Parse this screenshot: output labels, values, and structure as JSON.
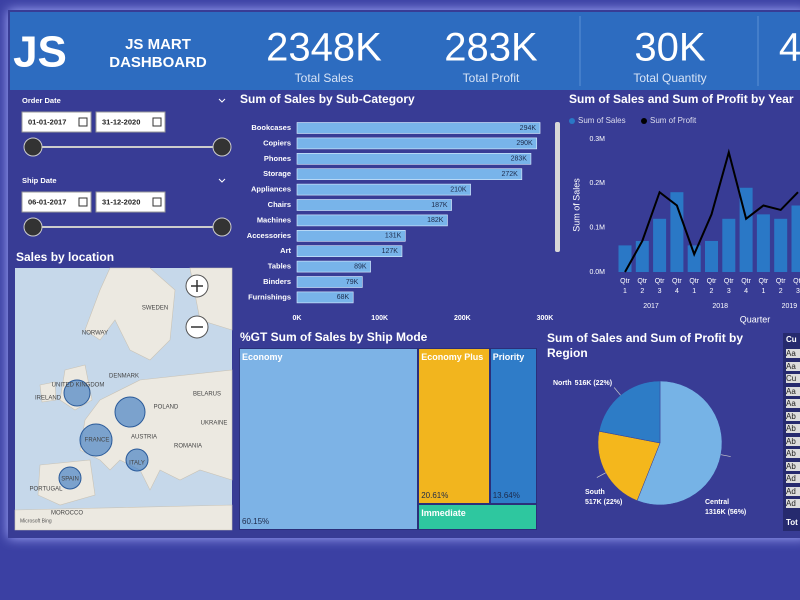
{
  "header": {
    "logo": "JS",
    "title": [
      "JS MART",
      "DASHBOARD"
    ]
  },
  "kpis": [
    {
      "value": "2348K",
      "label": "Total Sales"
    },
    {
      "value": "283K",
      "label": "Total Profit"
    },
    {
      "value": "30K",
      "label": "Total Quantity"
    },
    {
      "value": "4"
    }
  ],
  "filters": [
    {
      "label": "Order Date",
      "from": "01-01-2017",
      "to": "31-12-2020"
    },
    {
      "label": "Ship Date",
      "from": "06-01-2017",
      "to": "31-12-2020"
    }
  ],
  "map": {
    "title": "Sales by location",
    "places": [
      "SWEDEN",
      "NORWAY",
      "DENMARK",
      "UNITED KINGDOM",
      "IRELAND",
      "POLAND",
      "BELARUS",
      "FRANCE",
      "AUSTRIA",
      "UKRAINE",
      "ROMANIA",
      "ITALY",
      "SPAIN",
      "PORTUGAL",
      "MOROCCO"
    ],
    "attribution": "Microsoft Bing"
  },
  "chart_data": [
    {
      "type": "hbar",
      "title": "Sum of Sales by Sub-Category",
      "color": "#78b4ea",
      "categories": [
        "Bookcases",
        "Copiers",
        "Phones",
        "Storage",
        "Appliances",
        "Chairs",
        "Machines",
        "Accessories",
        "Art",
        "Tables",
        "Binders",
        "Furnishings"
      ],
      "values": [
        294,
        290,
        283,
        272,
        210,
        187,
        182,
        131,
        127,
        89,
        79,
        68
      ],
      "value_labels": [
        "294K",
        "290K",
        "283K",
        "272K",
        "210K",
        "187K",
        "182K",
        "131K",
        "127K",
        "89K",
        "79K",
        "68K"
      ],
      "xlim": [
        0,
        300
      ],
      "xticks": [
        {
          "value": 0,
          "label": "0K"
        },
        {
          "value": 100,
          "label": "100K"
        },
        {
          "value": 200,
          "label": "200K"
        },
        {
          "value": 300,
          "label": "300K"
        }
      ]
    },
    {
      "type": "combo",
      "title": "Sum of Sales and Sum of Profit by Year",
      "y_label": "Sum of Sales",
      "x_label": "Quarter",
      "categories": [
        "Qtr 1",
        "Qtr 2",
        "Qtr 3",
        "Qtr 4",
        "Qtr 1",
        "Qtr 2",
        "Qtr 3",
        "Qtr 4",
        "Qtr 1",
        "Qtr 2",
        "Qtr 3"
      ],
      "years": [
        "2017",
        "2018",
        "2019"
      ],
      "series": [
        {
          "name": "Sum of Sales",
          "kind": "bar",
          "color": "#2a78c6",
          "values": [
            0.06,
            0.07,
            0.12,
            0.18,
            0.06,
            0.07,
            0.12,
            0.19,
            0.13,
            0.12,
            0.15
          ]
        },
        {
          "name": "Sum of Profit",
          "kind": "line",
          "color": "#000000",
          "values": [
            0.0,
            0.07,
            0.18,
            0.15,
            0.04,
            0.13,
            0.27,
            0.12,
            0.15,
            0.14,
            0.18
          ]
        }
      ],
      "ylim": [
        0,
        0.3
      ],
      "yticks": [
        {
          "value": 0,
          "label": "0.0M"
        },
        {
          "value": 0.1,
          "label": "0.1M"
        },
        {
          "value": 0.2,
          "label": "0.2M"
        },
        {
          "value": 0.3,
          "label": "0.3M"
        }
      ]
    },
    {
      "type": "treemap",
      "title": "%GT Sum of Sales by Ship Mode",
      "categories": [
        "Economy",
        "Economy Plus",
        "Priority",
        "Immediate"
      ],
      "values": [
        60.15,
        20.61,
        13.64,
        5.6
      ],
      "value_labels": [
        "60.15%",
        "20.61%",
        "13.64%",
        null
      ],
      "colors": [
        "#7db3e6",
        "#f2b51e",
        "#2f7cc8",
        "#2ec79f"
      ]
    },
    {
      "type": "pie",
      "title": "Sum of Sales and Sum of Profit by Region",
      "categories": [
        "Central",
        "South",
        "North"
      ],
      "values": [
        1316,
        517,
        516
      ],
      "value_labels": [
        "1316K (56%)",
        "517K (22%)",
        "516K (22%)"
      ],
      "colors": [
        "#76b3e6",
        "#f4b71c",
        "#2d7cc6"
      ]
    }
  ],
  "table": {
    "header": "Cu",
    "rows": [
      "Aa",
      "Aa",
      "Cu",
      "Aa",
      "Aa",
      "Ab",
      "Ab",
      "Ab",
      "Ab",
      "Ab",
      "Ad",
      "Ad",
      "Ad"
    ],
    "total": "Tot"
  }
}
